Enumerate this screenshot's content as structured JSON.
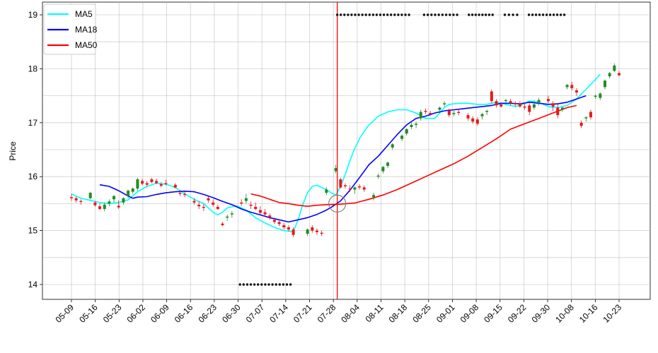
{
  "chart_data": {
    "type": "candlestick",
    "ylabel": "Price",
    "xlabel": "",
    "title": "",
    "ylim": [
      13.75,
      19.25
    ],
    "yticks": [
      14,
      15,
      16,
      17,
      18,
      19
    ],
    "grid": true,
    "legend_placement": "top-left",
    "x_tick_labels": [
      "05-09",
      "05-16",
      "05-23",
      "06-02",
      "06-09",
      "06-16",
      "06-23",
      "06-30",
      "07-07",
      "07-14",
      "07-21",
      "07-28",
      "08-04",
      "08-11",
      "08-18",
      "08-25",
      "09-01",
      "09-08",
      "09-15",
      "09-22",
      "09-30",
      "10-08",
      "10-16",
      "10-23"
    ],
    "colors": {
      "up": "#228b22",
      "down": "#e31a1c",
      "marker_line": "#ff0000",
      "dots": "#111111",
      "circle": "#808080"
    },
    "candles": [
      [
        15.62,
        15.68,
        15.55,
        15.6
      ],
      [
        15.6,
        15.63,
        15.52,
        15.56
      ],
      [
        15.55,
        15.58,
        15.48,
        15.53
      ],
      [
        15.6,
        15.72,
        15.58,
        15.7
      ],
      [
        15.52,
        15.55,
        15.44,
        15.47
      ],
      [
        15.45,
        15.5,
        15.38,
        15.4
      ],
      [
        15.4,
        15.52,
        15.36,
        15.48
      ],
      [
        15.5,
        15.58,
        15.45,
        15.54
      ],
      [
        15.58,
        15.66,
        15.52,
        15.64
      ],
      [
        15.46,
        15.56,
        15.4,
        15.43
      ],
      [
        15.52,
        15.62,
        15.48,
        15.6
      ],
      [
        15.64,
        15.76,
        15.6,
        15.74
      ],
      [
        15.72,
        15.8,
        15.68,
        15.78
      ],
      [
        15.78,
        15.98,
        15.74,
        15.95
      ],
      [
        15.92,
        15.96,
        15.84,
        15.87
      ],
      [
        15.88,
        15.92,
        15.82,
        15.85
      ],
      [
        15.95,
        15.98,
        15.88,
        15.9
      ],
      [
        15.92,
        15.96,
        15.86,
        15.88
      ],
      [
        15.86,
        15.9,
        15.8,
        15.83
      ],
      [
        15.88,
        15.94,
        15.84,
        15.86
      ],
      [
        15.85,
        15.88,
        15.78,
        15.8
      ],
      [
        15.7,
        15.75,
        15.64,
        15.68
      ],
      [
        15.68,
        15.72,
        15.62,
        15.66
      ],
      [
        15.55,
        15.6,
        15.48,
        15.52
      ],
      [
        15.48,
        15.55,
        15.4,
        15.45
      ],
      [
        15.44,
        15.5,
        15.36,
        15.42
      ],
      [
        15.6,
        15.64,
        15.52,
        15.56
      ],
      [
        15.52,
        15.58,
        15.44,
        15.48
      ],
      [
        15.44,
        15.48,
        15.38,
        15.4
      ],
      [
        15.13,
        15.16,
        15.08,
        15.1
      ],
      [
        15.24,
        15.3,
        15.18,
        15.26
      ],
      [
        15.3,
        15.36,
        15.24,
        15.32
      ],
      [
        15.52,
        15.58,
        15.46,
        15.5
      ],
      [
        15.55,
        15.68,
        15.5,
        15.6
      ],
      [
        15.48,
        15.54,
        15.4,
        15.46
      ],
      [
        15.44,
        15.52,
        15.38,
        15.4
      ],
      [
        15.38,
        15.45,
        15.3,
        15.33
      ],
      [
        15.34,
        15.4,
        15.26,
        15.3
      ],
      [
        15.28,
        15.32,
        15.2,
        15.24
      ],
      [
        15.2,
        15.24,
        15.12,
        15.16
      ],
      [
        15.16,
        15.2,
        15.08,
        15.12
      ],
      [
        15.1,
        15.14,
        15.02,
        15.06
      ],
      [
        15.06,
        15.1,
        14.98,
        15.02
      ],
      [
        15.02,
        15.06,
        14.88,
        14.92
      ],
      [
        14.94,
        15.04,
        14.9,
        15.02
      ],
      [
        15.06,
        15.1,
        14.96,
        15.0
      ],
      [
        15.0,
        15.04,
        14.92,
        14.97
      ],
      [
        14.96,
        15.0,
        14.9,
        14.94
      ],
      [
        15.7,
        15.8,
        15.66,
        15.76
      ],
      [
        16.1,
        16.22,
        16.06,
        16.16
      ],
      [
        15.95,
        15.98,
        15.78,
        15.8
      ],
      [
        15.84,
        15.88,
        15.78,
        15.82
      ],
      [
        15.78,
        15.84,
        15.72,
        15.76
      ],
      [
        15.76,
        15.82,
        15.68,
        15.8
      ],
      [
        15.82,
        15.86,
        15.76,
        15.8
      ],
      [
        15.8,
        15.84,
        15.72,
        15.76
      ],
      [
        15.62,
        15.7,
        15.56,
        15.66
      ],
      [
        16.0,
        16.06,
        15.96,
        16.02
      ],
      [
        16.1,
        16.2,
        16.06,
        16.18
      ],
      [
        16.2,
        16.28,
        16.16,
        16.26
      ],
      [
        16.54,
        16.62,
        16.5,
        16.6
      ],
      [
        16.7,
        16.78,
        16.66,
        16.76
      ],
      [
        16.8,
        16.9,
        16.76,
        16.88
      ],
      [
        16.92,
        17.0,
        16.88,
        16.96
      ],
      [
        16.96,
        17.02,
        16.9,
        16.98
      ],
      [
        17.08,
        17.24,
        17.04,
        17.2
      ],
      [
        17.22,
        17.26,
        17.16,
        17.2
      ],
      [
        17.18,
        17.22,
        17.12,
        17.16
      ],
      [
        17.24,
        17.3,
        17.18,
        17.28
      ],
      [
        17.34,
        17.4,
        17.3,
        17.36
      ],
      [
        17.22,
        17.26,
        17.1,
        17.14
      ],
      [
        17.16,
        17.22,
        17.12,
        17.18
      ],
      [
        17.2,
        17.24,
        17.14,
        17.18
      ],
      [
        17.14,
        17.18,
        17.04,
        17.08
      ],
      [
        17.08,
        17.12,
        16.98,
        17.02
      ],
      [
        17.06,
        17.1,
        16.94,
        16.98
      ],
      [
        17.12,
        17.18,
        17.06,
        17.16
      ],
      [
        17.2,
        17.24,
        17.14,
        17.22
      ],
      [
        17.58,
        17.62,
        17.36,
        17.4
      ],
      [
        17.4,
        17.44,
        17.28,
        17.32
      ],
      [
        17.34,
        17.38,
        17.28,
        17.3
      ],
      [
        17.4,
        17.44,
        17.34,
        17.42
      ],
      [
        17.4,
        17.44,
        17.32,
        17.36
      ],
      [
        17.36,
        17.4,
        17.3,
        17.34
      ],
      [
        17.36,
        17.4,
        17.28,
        17.3
      ],
      [
        17.3,
        17.36,
        17.24,
        17.28
      ],
      [
        17.32,
        17.36,
        17.14,
        17.2
      ],
      [
        17.28,
        17.42,
        17.24,
        17.34
      ],
      [
        17.38,
        17.46,
        17.32,
        17.42
      ],
      [
        17.44,
        17.5,
        17.36,
        17.4
      ],
      [
        17.36,
        17.4,
        17.22,
        17.3
      ],
      [
        17.28,
        17.34,
        17.08,
        17.14
      ],
      [
        17.24,
        17.3,
        17.2,
        17.28
      ],
      [
        17.66,
        17.72,
        17.62,
        17.7
      ],
      [
        17.7,
        17.76,
        17.6,
        17.64
      ],
      [
        17.6,
        17.64,
        17.5,
        17.56
      ],
      [
        17.0,
        17.04,
        16.9,
        16.94
      ],
      [
        17.08,
        17.12,
        17.02,
        17.1
      ],
      [
        17.2,
        17.24,
        17.06,
        17.1
      ],
      [
        17.48,
        17.52,
        17.44,
        17.5
      ],
      [
        17.46,
        17.56,
        17.42,
        17.54
      ],
      [
        17.66,
        17.8,
        17.62,
        17.78
      ],
      [
        17.86,
        17.94,
        17.82,
        17.92
      ],
      [
        17.96,
        18.1,
        17.94,
        18.06
      ],
      [
        17.92,
        17.96,
        17.86,
        17.88
      ]
    ],
    "candle_x_index": [
      0,
      1,
      2,
      4,
      5,
      6,
      7,
      8,
      9,
      10,
      11,
      12,
      13,
      14,
      15,
      16,
      17,
      18,
      19,
      20,
      22,
      23,
      24,
      26,
      27,
      28,
      29,
      30,
      31,
      32,
      33,
      34,
      36,
      37,
      38,
      39,
      40,
      41,
      42,
      43,
      44,
      45,
      46,
      47,
      50,
      51,
      52,
      53,
      54,
      56,
      57,
      58,
      59,
      60,
      61,
      62,
      64,
      65,
      66,
      67,
      68,
      70,
      71,
      72,
      73,
      74,
      75,
      76,
      78,
      79,
      80,
      81,
      82,
      84,
      85,
      86,
      87,
      88,
      89,
      90,
      91,
      92,
      93,
      94,
      95,
      96,
      97,
      98,
      99,
      101,
      102,
      103,
      104,
      105,
      106,
      107,
      108,
      109,
      110,
      111,
      112,
      113,
      114,
      115,
      116
    ],
    "series": [
      {
        "name": "MA5",
        "color": "#00ffff",
        "points": [
          [
            0,
            15.68
          ],
          [
            2,
            15.6
          ],
          [
            4,
            15.56
          ],
          [
            6,
            15.52
          ],
          [
            8,
            15.5
          ],
          [
            10,
            15.52
          ],
          [
            12,
            15.57
          ],
          [
            14,
            15.72
          ],
          [
            16,
            15.82
          ],
          [
            18,
            15.88
          ],
          [
            20,
            15.86
          ],
          [
            22,
            15.8
          ],
          [
            24,
            15.68
          ],
          [
            26,
            15.58
          ],
          [
            28,
            15.5
          ],
          [
            29,
            15.42
          ],
          [
            30,
            15.34
          ],
          [
            31,
            15.29
          ],
          [
            32,
            15.34
          ],
          [
            33,
            15.42
          ],
          [
            35,
            15.46
          ],
          [
            37,
            15.38
          ],
          [
            39,
            15.24
          ],
          [
            41,
            15.14
          ],
          [
            43,
            15.06
          ],
          [
            45,
            15.0
          ],
          [
            47,
            14.98
          ],
          [
            48,
            15.2
          ],
          [
            49,
            15.48
          ],
          [
            50,
            15.7
          ],
          [
            51,
            15.82
          ],
          [
            52,
            15.84
          ],
          [
            53,
            15.8
          ],
          [
            54,
            15.76
          ],
          [
            55,
            15.7
          ],
          [
            56,
            15.66
          ],
          [
            57,
            15.82
          ],
          [
            58,
            16.04
          ],
          [
            59,
            16.3
          ],
          [
            60,
            16.52
          ],
          [
            61,
            16.7
          ],
          [
            62,
            16.84
          ],
          [
            63,
            16.96
          ],
          [
            65,
            17.12
          ],
          [
            67,
            17.2
          ],
          [
            69,
            17.24
          ],
          [
            71,
            17.24
          ],
          [
            73,
            17.18
          ],
          [
            75,
            17.08
          ],
          [
            77,
            17.08
          ],
          [
            78,
            17.18
          ],
          [
            79,
            17.28
          ],
          [
            80,
            17.34
          ],
          [
            82,
            17.36
          ],
          [
            84,
            17.36
          ],
          [
            86,
            17.34
          ],
          [
            88,
            17.34
          ],
          [
            90,
            17.38
          ],
          [
            92,
            17.34
          ],
          [
            94,
            17.3
          ],
          [
            95,
            17.32
          ],
          [
            97,
            17.4
          ],
          [
            99,
            17.38
          ],
          [
            101,
            17.3
          ],
          [
            103,
            17.28
          ],
          [
            105,
            17.32
          ],
          [
            107,
            17.44
          ],
          [
            109,
            17.62
          ],
          [
            111,
            17.8
          ],
          [
            112,
            17.9
          ]
        ]
      },
      {
        "name": "MA18",
        "color": "#0000ff",
        "points": [
          [
            6,
            15.85
          ],
          [
            8,
            15.82
          ],
          [
            10,
            15.74
          ],
          [
            12,
            15.64
          ],
          [
            13,
            15.6
          ],
          [
            14,
            15.62
          ],
          [
            16,
            15.63
          ],
          [
            18,
            15.67
          ],
          [
            20,
            15.7
          ],
          [
            22,
            15.72
          ],
          [
            24,
            15.73
          ],
          [
            26,
            15.72
          ],
          [
            28,
            15.67
          ],
          [
            30,
            15.61
          ],
          [
            32,
            15.54
          ],
          [
            34,
            15.48
          ],
          [
            36,
            15.4
          ],
          [
            38,
            15.34
          ],
          [
            40,
            15.29
          ],
          [
            42,
            15.24
          ],
          [
            44,
            15.2
          ],
          [
            46,
            15.16
          ],
          [
            48,
            15.2
          ],
          [
            50,
            15.24
          ],
          [
            52,
            15.3
          ],
          [
            54,
            15.38
          ],
          [
            55,
            15.43
          ],
          [
            57,
            15.55
          ],
          [
            59,
            15.75
          ],
          [
            61,
            15.98
          ],
          [
            63,
            16.22
          ],
          [
            65,
            16.38
          ],
          [
            67,
            16.58
          ],
          [
            69,
            16.78
          ],
          [
            71,
            16.96
          ],
          [
            73,
            17.08
          ],
          [
            75,
            17.12
          ],
          [
            77,
            17.18
          ],
          [
            79,
            17.22
          ],
          [
            81,
            17.24
          ],
          [
            83,
            17.26
          ],
          [
            85,
            17.28
          ],
          [
            87,
            17.3
          ],
          [
            89,
            17.32
          ],
          [
            91,
            17.36
          ],
          [
            93,
            17.36
          ],
          [
            95,
            17.35
          ],
          [
            97,
            17.38
          ],
          [
            99,
            17.36
          ],
          [
            101,
            17.34
          ],
          [
            103,
            17.35
          ],
          [
            105,
            17.38
          ],
          [
            107,
            17.44
          ],
          [
            109,
            17.5
          ]
        ]
      },
      {
        "name": "MA50",
        "color": "#ff0000",
        "points": [
          [
            38,
            15.68
          ],
          [
            40,
            15.64
          ],
          [
            42,
            15.58
          ],
          [
            44,
            15.52
          ],
          [
            46,
            15.5
          ],
          [
            48,
            15.47
          ],
          [
            50,
            15.45
          ],
          [
            52,
            15.47
          ],
          [
            54,
            15.48
          ],
          [
            57,
            15.49
          ],
          [
            60,
            15.51
          ],
          [
            63,
            15.58
          ],
          [
            66,
            15.66
          ],
          [
            69,
            15.76
          ],
          [
            72,
            15.88
          ],
          [
            75,
            16.0
          ],
          [
            78,
            16.12
          ],
          [
            81,
            16.24
          ],
          [
            84,
            16.38
          ],
          [
            87,
            16.54
          ],
          [
            90,
            16.7
          ],
          [
            93,
            16.88
          ],
          [
            96,
            16.98
          ],
          [
            99,
            17.08
          ],
          [
            102,
            17.18
          ],
          [
            105,
            17.28
          ],
          [
            107,
            17.32
          ]
        ]
      }
    ],
    "marker_vline_x": 56.3,
    "marker_circle": {
      "x": 56.3,
      "y": 15.5
    },
    "dots_top": {
      "y": 19.0,
      "groups": [
        [
          56.3,
          71.5
        ],
        [
          74.7,
          81.7
        ],
        [
          84.2,
          89.2
        ],
        [
          91.8,
          94.4
        ],
        [
          96.9,
          104.4
        ]
      ]
    },
    "dots_bottom": {
      "y": 14.0,
      "groups": [
        [
          35.7,
          46.4
        ]
      ]
    }
  }
}
